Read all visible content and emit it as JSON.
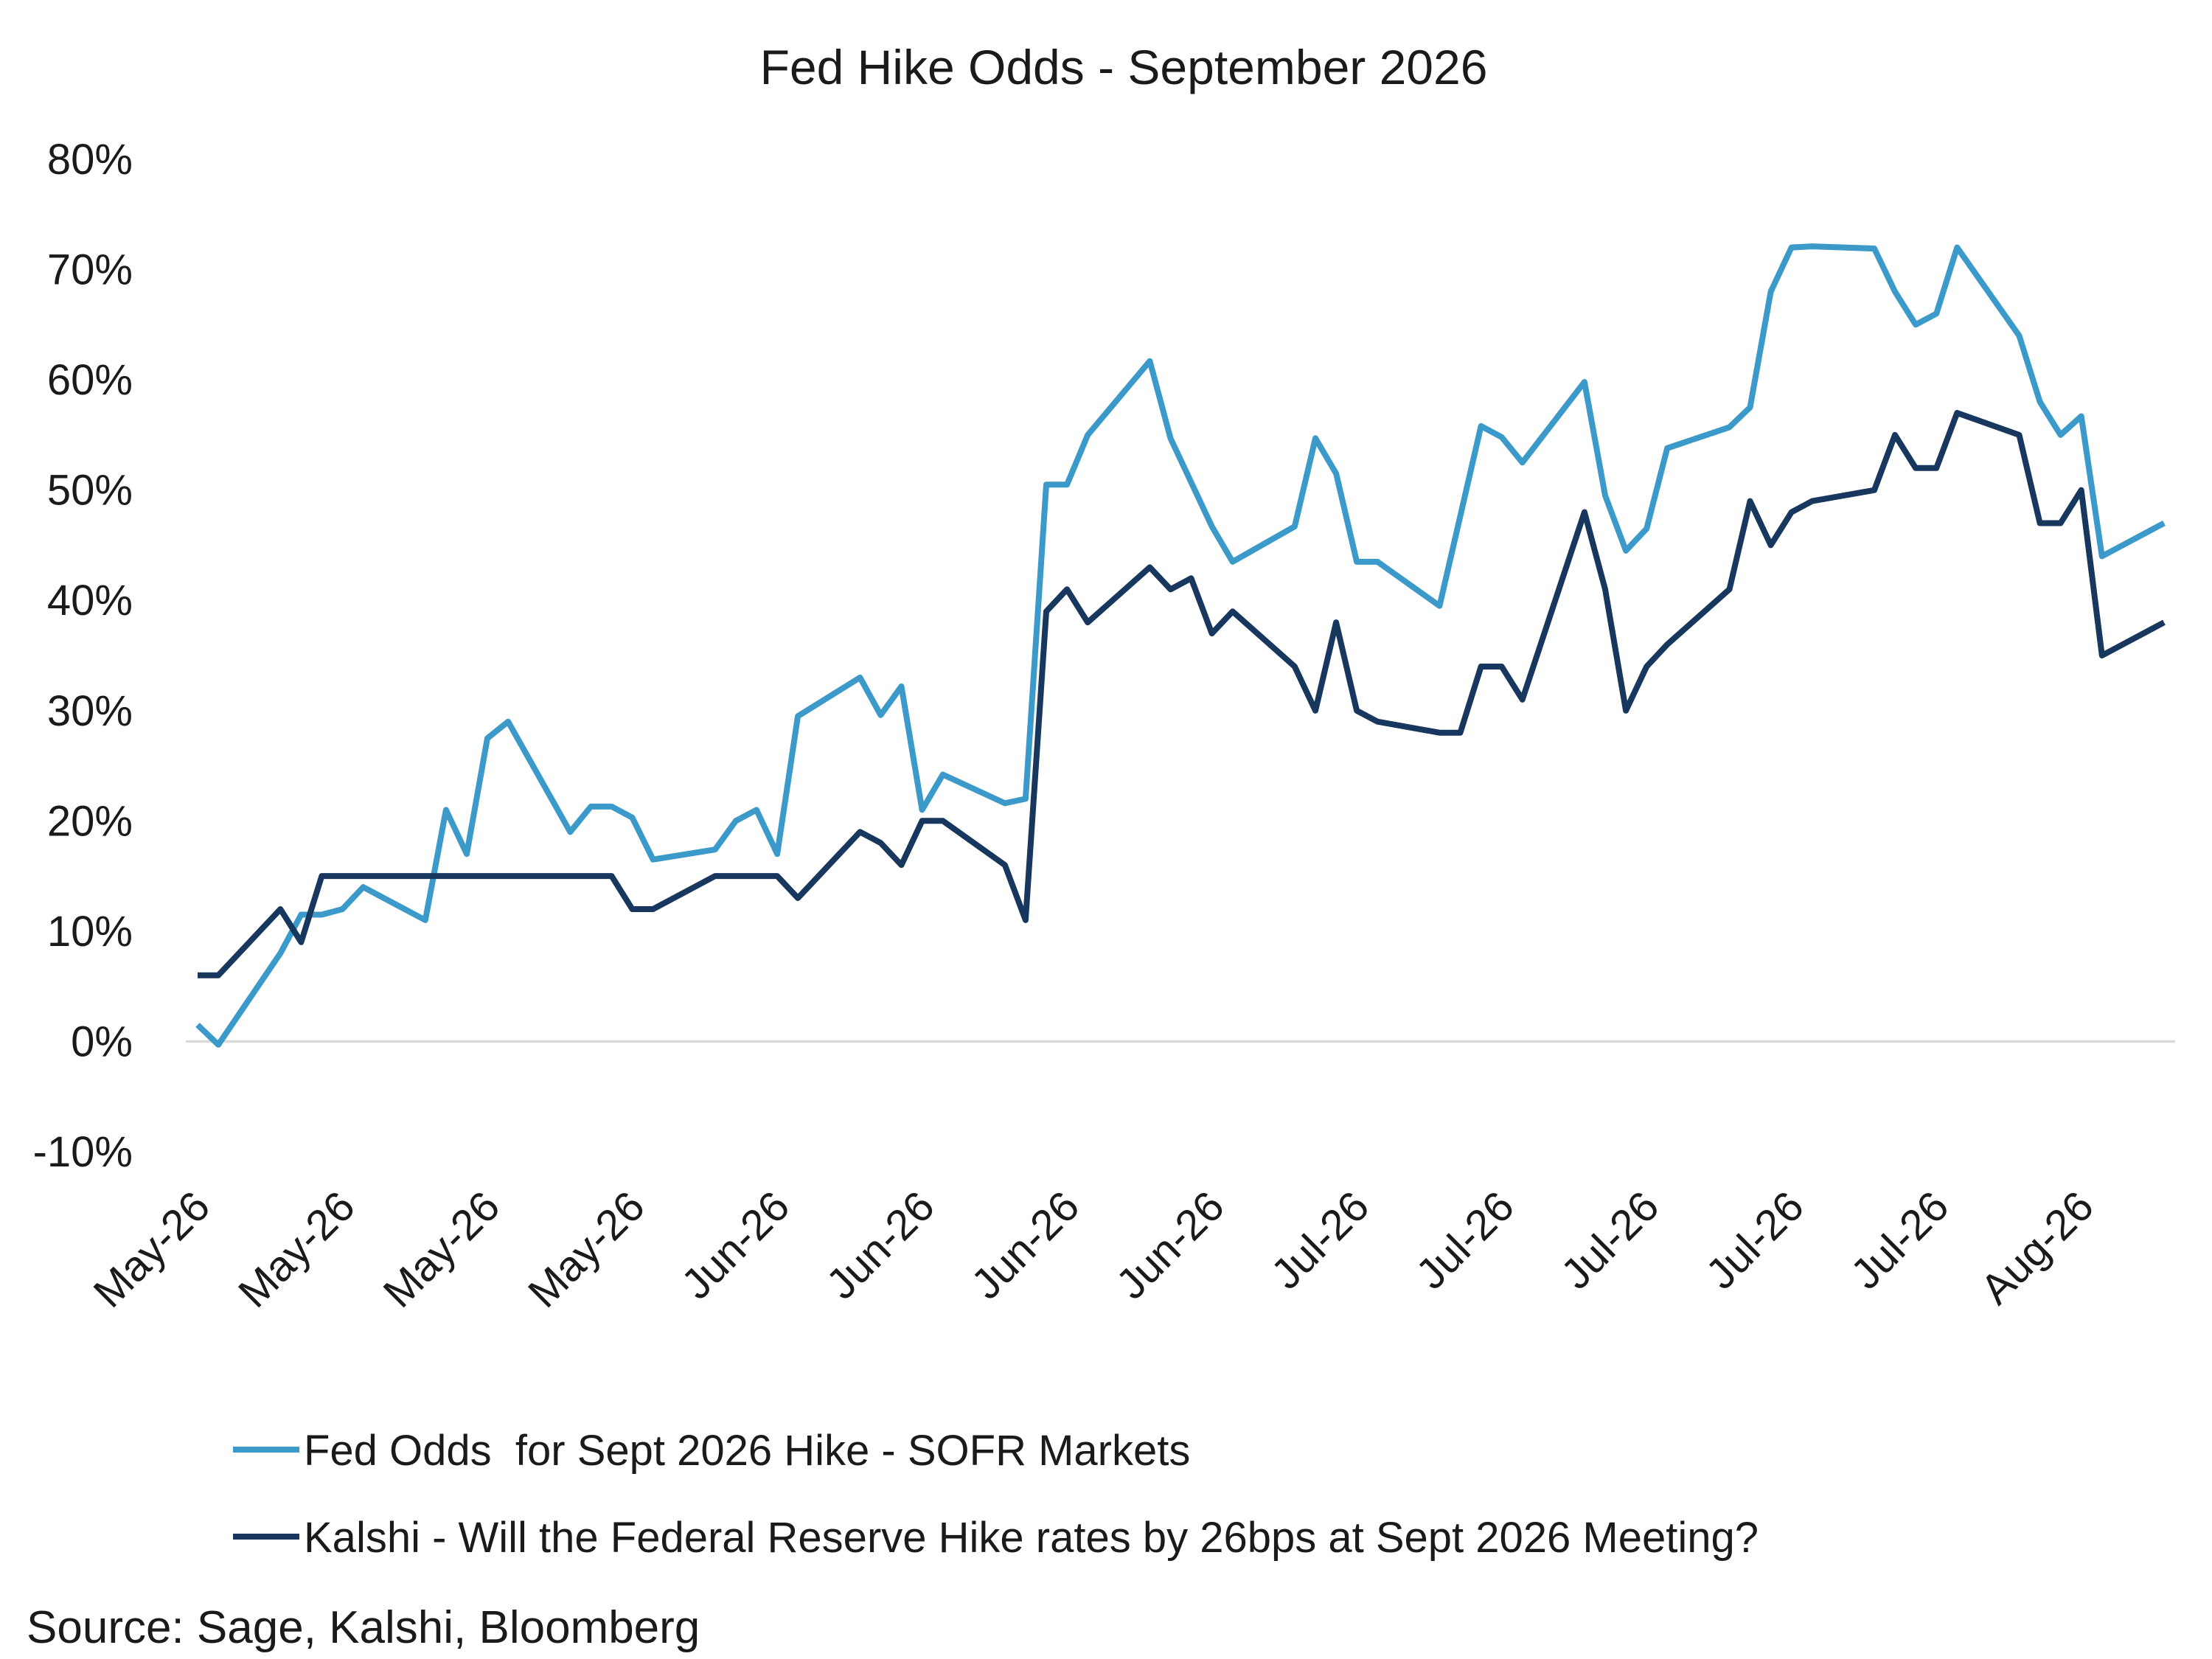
{
  "chart_data": {
    "type": "line",
    "title": "Fed Hike Odds - September 2026",
    "xlabel": "",
    "ylabel": "",
    "ylim": [
      -10,
      80
    ],
    "y_ticks": [
      "80%",
      "70%",
      "60%",
      "50%",
      "40%",
      "30%",
      "20%",
      "10%",
      "0%",
      "-10%"
    ],
    "y_tick_values": [
      80,
      70,
      60,
      50,
      40,
      30,
      20,
      10,
      0,
      -10
    ],
    "x_tick_labels": [
      "May-26",
      "May-26",
      "May-26",
      "May-26",
      "Jun-26",
      "Jun-26",
      "Jun-26",
      "Jun-26",
      "Jul-26",
      "Jul-26",
      "Jul-26",
      "Jul-26",
      "Jul-26",
      "Aug-26"
    ],
    "x_tick_positions": [
      0,
      7,
      14,
      21,
      28,
      35,
      42,
      49,
      56,
      63,
      70,
      77,
      84,
      91
    ],
    "n_points": 96,
    "grid": false,
    "legend_position": "bottom",
    "series": [
      {
        "name": "Fed Odds  for Sept 2026 Hike - SOFR Markets",
        "color": "#3b9ac9",
        "points": [
          [
            0,
            1.5
          ],
          [
            1,
            -0.3
          ],
          [
            4,
            8
          ],
          [
            5,
            11.5
          ],
          [
            6,
            11.5
          ],
          [
            7,
            12
          ],
          [
            8,
            14
          ],
          [
            11,
            11
          ],
          [
            12,
            21
          ],
          [
            13,
            17
          ],
          [
            14,
            27.5
          ],
          [
            15,
            29
          ],
          [
            18,
            19
          ],
          [
            19,
            21.3
          ],
          [
            20,
            21.3
          ],
          [
            21,
            20.3
          ],
          [
            22,
            16.5
          ],
          [
            25,
            17.4
          ],
          [
            26,
            20
          ],
          [
            27,
            21
          ],
          [
            28,
            17
          ],
          [
            29,
            29.5
          ],
          [
            32,
            33
          ],
          [
            33,
            29.6
          ],
          [
            34,
            32.2
          ],
          [
            35,
            21
          ],
          [
            36,
            24.2
          ],
          [
            39,
            21.6
          ],
          [
            40,
            22
          ],
          [
            41,
            50.5
          ],
          [
            42,
            50.5
          ],
          [
            43,
            55
          ],
          [
            46,
            61.7
          ],
          [
            47,
            54.7
          ],
          [
            49,
            46.7
          ],
          [
            50,
            43.5
          ],
          [
            53,
            46.7
          ],
          [
            54,
            54.7
          ],
          [
            55,
            51.5
          ],
          [
            56,
            43.5
          ],
          [
            57,
            43.5
          ],
          [
            60,
            39.5
          ],
          [
            62,
            55.8
          ],
          [
            63,
            54.8
          ],
          [
            64,
            52.5
          ],
          [
            67,
            59.8
          ],
          [
            68,
            49.5
          ],
          [
            69,
            44.5
          ],
          [
            70,
            46.5
          ],
          [
            71,
            53.8
          ],
          [
            74,
            55.7
          ],
          [
            75,
            57.5
          ],
          [
            76,
            68
          ],
          [
            77,
            72
          ],
          [
            78,
            72.1
          ],
          [
            81,
            71.9
          ],
          [
            82,
            68
          ],
          [
            83,
            65
          ],
          [
            84,
            66
          ],
          [
            85,
            72
          ],
          [
            88,
            64
          ],
          [
            89,
            58
          ],
          [
            90,
            55
          ],
          [
            91,
            56.7
          ],
          [
            92,
            44
          ],
          [
            95,
            47
          ]
        ]
      },
      {
        "name": "Kalshi - Will the Federal Reserve Hike rates by 26bps at Sept 2026 Meeting?",
        "color": "#17375e",
        "points": [
          [
            0,
            6
          ],
          [
            1,
            6
          ],
          [
            4,
            12
          ],
          [
            5,
            9
          ],
          [
            6,
            15
          ],
          [
            20,
            15
          ],
          [
            21,
            12
          ],
          [
            22,
            12
          ],
          [
            25,
            15
          ],
          [
            28,
            15
          ],
          [
            29,
            13
          ],
          [
            32,
            19
          ],
          [
            33,
            18
          ],
          [
            34,
            16
          ],
          [
            35,
            20
          ],
          [
            36,
            20
          ],
          [
            39,
            16
          ],
          [
            40,
            11
          ],
          [
            41,
            39
          ],
          [
            42,
            41
          ],
          [
            43,
            38
          ],
          [
            46,
            43
          ],
          [
            47,
            41
          ],
          [
            48,
            42
          ],
          [
            49,
            37
          ],
          [
            50,
            39
          ],
          [
            53,
            34
          ],
          [
            54,
            30
          ],
          [
            55,
            38
          ],
          [
            56,
            30
          ],
          [
            57,
            29
          ],
          [
            60,
            28
          ],
          [
            61,
            28
          ],
          [
            62,
            34
          ],
          [
            63,
            34
          ],
          [
            64,
            31
          ],
          [
            67,
            48
          ],
          [
            68,
            41
          ],
          [
            69,
            30
          ],
          [
            70,
            34
          ],
          [
            71,
            36
          ],
          [
            74,
            41
          ],
          [
            75,
            49
          ],
          [
            76,
            45
          ],
          [
            77,
            48
          ],
          [
            78,
            49
          ],
          [
            81,
            50
          ],
          [
            82,
            55
          ],
          [
            83,
            52
          ],
          [
            84,
            52
          ],
          [
            85,
            57
          ],
          [
            88,
            55
          ],
          [
            89,
            47
          ],
          [
            90,
            47
          ],
          [
            91,
            50
          ],
          [
            92,
            35
          ],
          [
            95,
            38
          ]
        ]
      }
    ]
  },
  "legend": {
    "entries": [
      "Fed Odds  for Sept 2026 Hike - SOFR Markets",
      "Kalshi - Will the Federal Reserve Hike rates by 26bps at Sept 2026 Meeting?"
    ]
  },
  "source_note": "Source: Sage, Kalshi, Bloomberg"
}
